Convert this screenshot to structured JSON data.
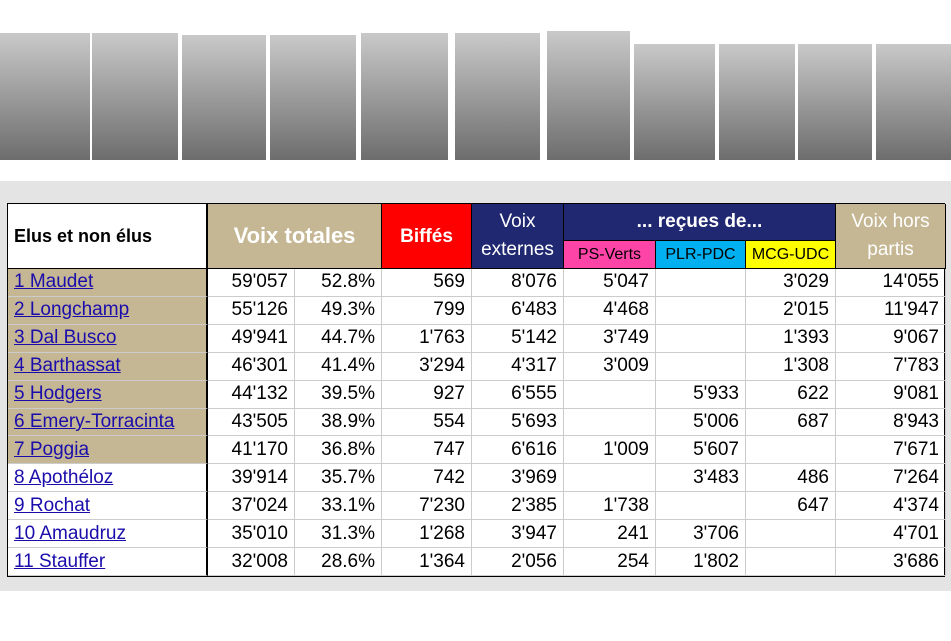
{
  "table": {
    "header": {
      "name": "Elus et non élus",
      "total": "Voix totales",
      "biffes": "Biffés",
      "externes": "Voix externes",
      "recues": "... reçues de...",
      "ps": "PS-Verts",
      "plr": "PLR-PDC",
      "mcg": "MCG-UDC",
      "hors": "Voix hors partis"
    },
    "rows": [
      [
        "1 Maudet",
        "59'057",
        "52.8%",
        "569",
        "8'076",
        "5'047",
        null,
        "3'029",
        "14'055"
      ],
      [
        "2 Longchamp",
        "55'126",
        "49.3%",
        "799",
        "6'483",
        "4'468",
        null,
        "2'015",
        "11'947"
      ],
      [
        "3 Dal Busco",
        "49'941",
        "44.7%",
        "1'763",
        "5'142",
        "3'749",
        null,
        "1'393",
        "9'067"
      ],
      [
        "4 Barthassat",
        "46'301",
        "41.4%",
        "3'294",
        "4'317",
        "3'009",
        null,
        "1'308",
        "7'783"
      ],
      [
        "5 Hodgers",
        "44'132",
        "39.5%",
        "927",
        "6'555",
        null,
        "5'933",
        "622",
        "9'081"
      ],
      [
        "6 Emery-Torracinta",
        "43'505",
        "38.9%",
        "554",
        "5'693",
        null,
        "5'006",
        "687",
        "8'943"
      ],
      [
        "7 Poggia",
        "41'170",
        "36.8%",
        "747",
        "6'616",
        "1'009",
        "5'607",
        null,
        "7'671"
      ],
      [
        "8 Apothéloz",
        "39'914",
        "35.7%",
        "742",
        "3'969",
        null,
        "3'483",
        "486",
        "7'264"
      ],
      [
        "9 Rochat",
        "37'024",
        "33.1%",
        "7'230",
        "2'385",
        "1'738",
        null,
        "647",
        "4'374"
      ],
      [
        "10 Amaudruz",
        "35'010",
        "31.3%",
        "1'268",
        "3'947",
        "241",
        "3'706",
        null,
        "4'701"
      ],
      [
        "11 Stauffer",
        "32'008",
        "28.6%",
        "1'364",
        "2'056",
        "254",
        "1'802",
        null,
        "3'686"
      ]
    ]
  }
}
